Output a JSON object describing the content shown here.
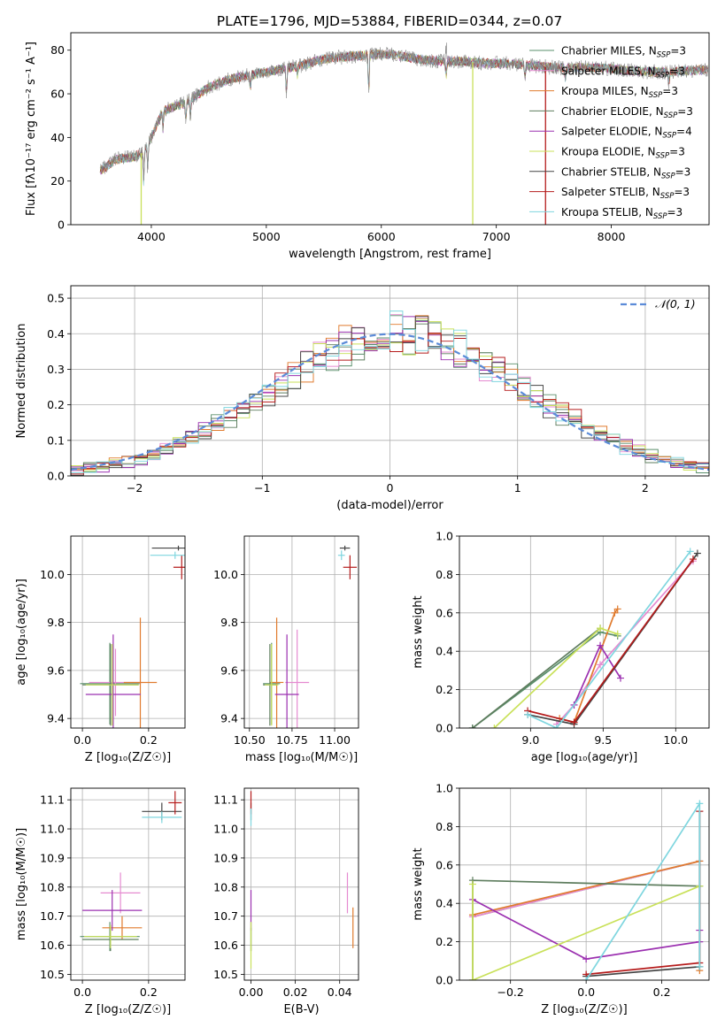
{
  "figure_title": "PLATE=1796, MJD=53884, FIBERID=0344, z=0.07",
  "colors": {
    "Chabrier MILES": "#5a8f6b",
    "Salpeter MILES": "#e58ad0",
    "Kroupa MILES": "#e07b2e",
    "Chabrier ELODIE": "#5e7d5e",
    "Salpeter ELODIE": "#9b30b0",
    "Kroupa ELODIE": "#c9e15a",
    "Chabrier STELIB": "#444444",
    "Salpeter STELIB": "#b51b1b",
    "Kroupa STELIB": "#7fd6df",
    "normal_curve": "#5b8bd8",
    "grid": "#b0b0b0"
  },
  "chart_data": [
    {
      "id": "spectrum",
      "type": "line",
      "title": "PLATE=1796, MJD=53884, FIBERID=0344, z=0.07",
      "xlabel": "wavelength [Angstrom, rest frame]",
      "ylabel": "Flux [fλ10⁻¹⁷ erg cm⁻² s⁻¹ A⁻¹]",
      "xlim": [
        3300,
        8850
      ],
      "ylim": [
        0,
        88
      ],
      "xticks": [
        4000,
        5000,
        6000,
        7000,
        8000
      ],
      "yticks": [
        0,
        20,
        40,
        60,
        80
      ],
      "grid": false,
      "legend_position": "top-right",
      "legend": [
        {
          "name": "Chabrier MILES",
          "sub": "SSP",
          "n": 3
        },
        {
          "name": "Salpeter MILES",
          "sub": "SSP",
          "n": 3
        },
        {
          "name": "Kroupa MILES",
          "sub": "SSP",
          "n": 3
        },
        {
          "name": "Chabrier ELODIE",
          "sub": "SSP",
          "n": 3
        },
        {
          "name": "Salpeter ELODIE",
          "sub": "SSP",
          "n": 4
        },
        {
          "name": "Kroupa ELODIE",
          "sub": "SSP",
          "n": 3
        },
        {
          "name": "Chabrier STELIB",
          "sub": "SSP",
          "n": 3
        },
        {
          "name": "Salpeter STELIB",
          "sub": "SSP",
          "n": 3
        },
        {
          "name": "Kroupa STELIB",
          "sub": "SSP",
          "n": 3
        }
      ],
      "continuum_x": [
        3560,
        3700,
        3850,
        3920,
        4000,
        4100,
        4300,
        4500,
        4700,
        4900,
        5100,
        5300,
        5500,
        5700,
        5900,
        6100,
        6300,
        6500,
        6700,
        6900,
        7100,
        7300,
        7500,
        7700,
        7900,
        8100,
        8300,
        8500,
        8800
      ],
      "continuum_y": [
        25,
        30,
        31,
        33,
        40,
        52,
        56,
        63,
        67,
        69,
        71,
        73,
        76,
        77,
        78,
        78,
        76,
        75,
        75,
        74,
        74,
        73,
        72,
        72,
        72,
        71,
        70,
        70,
        71
      ],
      "absorption_lines": [
        {
          "x": 3934,
          "depth": 15
        },
        {
          "x": 3969,
          "depth": 12
        },
        {
          "x": 4102,
          "depth": 8
        },
        {
          "x": 4300,
          "depth": 9
        },
        {
          "x": 4340,
          "depth": 8
        },
        {
          "x": 4861,
          "depth": 6
        },
        {
          "x": 5175,
          "depth": 12
        },
        {
          "x": 5270,
          "depth": 4
        },
        {
          "x": 5890,
          "depth": 18
        },
        {
          "x": 6563,
          "depth": 7
        },
        {
          "x": 7250,
          "depth": 5
        },
        {
          "x": 7600,
          "depth": 6
        },
        {
          "x": 8500,
          "depth": 5
        }
      ],
      "model_drop_lines": [
        {
          "x": 3912,
          "series": "Kroupa ELODIE"
        },
        {
          "x": 6795,
          "series": "Kroupa ELODIE"
        },
        {
          "x": 7428,
          "series": "Salpeter STELIB"
        }
      ]
    },
    {
      "id": "residuals",
      "type": "histogram",
      "xlabel": "(data-model)/error",
      "ylabel": "Normed distribution",
      "xlim": [
        -2.5,
        2.5
      ],
      "ylim": [
        0,
        0.535
      ],
      "xticks": [
        -2,
        -1,
        0,
        1,
        2
      ],
      "yticks": [
        0.0,
        0.1,
        0.2,
        0.3,
        0.4,
        0.5
      ],
      "grid": true,
      "legend_position": "top-right",
      "legend": [
        {
          "name": "𝒩(0, 1)",
          "style": "dashed"
        }
      ],
      "bin_width": 0.1,
      "curve": {
        "type": "normal",
        "mu": 0,
        "sigma": 1
      }
    },
    {
      "id": "age_vs_Z",
      "type": "errorbar",
      "xlabel": "Z [log₁₀(Z/Z☉)]",
      "ylabel": "age  [log₁₀(age/yr)]",
      "xlim": [
        -0.035,
        0.31
      ],
      "ylim": [
        9.36,
        10.16
      ],
      "xticks": [
        0.0,
        0.2
      ],
      "yticks": [
        9.4,
        9.6,
        9.8,
        10.0
      ],
      "grid": true,
      "points": [
        {
          "s": "Chabrier MILES",
          "x": 0.083,
          "xerr": 0.09,
          "y": 9.545,
          "yerr": 0.17
        },
        {
          "s": "Salpeter MILES",
          "x": 0.1,
          "xerr": 0.08,
          "y": 9.55,
          "yerr": 0.14
        },
        {
          "s": "Kroupa MILES",
          "x": 0.175,
          "xerr": 0.05,
          "y": 9.55,
          "yerr": 0.27
        },
        {
          "s": "Chabrier ELODIE",
          "x": 0.085,
          "xerr": 0.085,
          "y": 9.54,
          "yerr": 0.17
        },
        {
          "s": "Salpeter ELODIE",
          "x": 0.093,
          "xerr": 0.083,
          "y": 9.5,
          "yerr": 0.25
        },
        {
          "s": "Kroupa ELODIE",
          "x": 0.09,
          "xerr": 0.08,
          "y": 9.54,
          "yerr": 0.17
        },
        {
          "s": "Chabrier STELIB",
          "x": 0.29,
          "xerr": 0.08,
          "y": 10.11,
          "yerr": 0.01
        },
        {
          "s": "Salpeter STELIB",
          "x": 0.3,
          "xerr": 0.025,
          "y": 10.03,
          "yerr": 0.05
        },
        {
          "s": "Kroupa STELIB",
          "x": 0.28,
          "xerr": 0.075,
          "y": 10.08,
          "yerr": 0.015
        }
      ]
    },
    {
      "id": "age_vs_mass",
      "type": "errorbar",
      "xlabel": "mass [log₁₀(M/M☉)]",
      "ylabel": "",
      "xlim": [
        10.47,
        11.14
      ],
      "ylim": [
        9.36,
        10.16
      ],
      "xticks": [
        10.5,
        10.75,
        11.0
      ],
      "xticklabels": [
        "10.50",
        "10.75",
        "11.00"
      ],
      "yticks": [
        9.4,
        9.6,
        9.8,
        10.0
      ],
      "grid": true,
      "points": [
        {
          "s": "Chabrier MILES",
          "x": 10.63,
          "xerr": 0.05,
          "y": 9.545,
          "yerr": 0.17
        },
        {
          "s": "Salpeter MILES",
          "x": 10.78,
          "xerr": 0.07,
          "y": 9.55,
          "yerr": 0.22
        },
        {
          "s": "Kroupa MILES",
          "x": 10.66,
          "xerr": 0.04,
          "y": 9.55,
          "yerr": 0.27
        },
        {
          "s": "Chabrier ELODIE",
          "x": 10.62,
          "xerr": 0.04,
          "y": 9.54,
          "yerr": 0.17
        },
        {
          "s": "Salpeter ELODIE",
          "x": 10.72,
          "xerr": 0.07,
          "y": 9.5,
          "yerr": 0.25
        },
        {
          "s": "Kroupa ELODIE",
          "x": 10.63,
          "xerr": 0.04,
          "y": 9.54,
          "yerr": 0.17
        },
        {
          "s": "Chabrier STELIB",
          "x": 11.06,
          "xerr": 0.03,
          "y": 10.11,
          "yerr": 0.01
        },
        {
          "s": "Salpeter STELIB",
          "x": 11.09,
          "xerr": 0.04,
          "y": 10.03,
          "yerr": 0.05
        },
        {
          "s": "Kroupa STELIB",
          "x": 11.04,
          "xerr": 0.02,
          "y": 10.08,
          "yerr": 0.02
        }
      ]
    },
    {
      "id": "mass_weight_vs_age",
      "type": "line",
      "xlabel": "age  [log₁₀(age/yr)]",
      "ylabel": "mass weight",
      "xlim": [
        8.51,
        10.23
      ],
      "ylim": [
        0,
        1.0
      ],
      "xticks": [
        9.0,
        9.5,
        10.0
      ],
      "yticks": [
        0.0,
        0.2,
        0.4,
        0.6,
        0.8,
        1.0
      ],
      "grid": true,
      "series": [
        {
          "name": "Chabrier MILES",
          "x": [
            8.6,
            9.48,
            9.6
          ],
          "y": [
            0.0,
            0.5,
            0.48
          ]
        },
        {
          "name": "Salpeter MILES",
          "x": [
            9.18,
            9.3,
            9.48,
            10.12
          ],
          "y": [
            0.02,
            0.12,
            0.33,
            0.87
          ]
        },
        {
          "name": "Kroupa MILES",
          "x": [
            9.2,
            9.3,
            9.58,
            9.6
          ],
          "y": [
            0.05,
            0.03,
            0.6,
            0.62
          ]
        },
        {
          "name": "Chabrier ELODIE",
          "x": [
            8.6,
            9.48
          ],
          "y": [
            0.0,
            0.52
          ]
        },
        {
          "name": "Salpeter ELODIE",
          "x": [
            9.3,
            9.48,
            9.62
          ],
          "y": [
            0.12,
            0.43,
            0.26
          ]
        },
        {
          "name": "Kroupa ELODIE",
          "x": [
            8.75,
            9.48,
            9.6
          ],
          "y": [
            0.0,
            0.52,
            0.49
          ]
        },
        {
          "name": "Chabrier STELIB",
          "x": [
            8.98,
            9.3,
            10.15
          ],
          "y": [
            0.07,
            0.02,
            0.91
          ]
        },
        {
          "name": "Salpeter STELIB",
          "x": [
            8.98,
            9.3,
            10.12
          ],
          "y": [
            0.09,
            0.03,
            0.88
          ]
        },
        {
          "name": "Kroupa STELIB",
          "x": [
            8.98,
            9.18,
            10.1
          ],
          "y": [
            0.07,
            0.0,
            0.92
          ]
        }
      ]
    },
    {
      "id": "mass_vs_Z",
      "type": "errorbar",
      "xlabel": "Z [log₁₀(Z/Z☉)]",
      "ylabel": "mass [log₁₀(M/M☉)]",
      "xlim": [
        -0.035,
        0.31
      ],
      "ylim": [
        10.48,
        11.14
      ],
      "xticks": [
        0.0,
        0.2
      ],
      "yticks": [
        10.5,
        10.6,
        10.7,
        10.8,
        10.9,
        11.0,
        11.1
      ],
      "grid": true,
      "points": [
        {
          "s": "Chabrier MILES",
          "x": 0.083,
          "xerr": 0.09,
          "y": 10.63,
          "yerr": 0.05
        },
        {
          "s": "Salpeter MILES",
          "x": 0.115,
          "xerr": 0.06,
          "y": 10.78,
          "yerr": 0.07
        },
        {
          "s": "Kroupa MILES",
          "x": 0.12,
          "xerr": 0.06,
          "y": 10.66,
          "yerr": 0.04
        },
        {
          "s": "Chabrier ELODIE",
          "x": 0.085,
          "xerr": 0.085,
          "y": 10.62,
          "yerr": 0.04
        },
        {
          "s": "Salpeter ELODIE",
          "x": 0.09,
          "xerr": 0.09,
          "y": 10.72,
          "yerr": 0.07
        },
        {
          "s": "Kroupa ELODIE",
          "x": 0.085,
          "xerr": 0.08,
          "y": 10.63,
          "yerr": 0.04
        },
        {
          "s": "Chabrier STELIB",
          "x": 0.24,
          "xerr": 0.06,
          "y": 11.06,
          "yerr": 0.03
        },
        {
          "s": "Salpeter STELIB",
          "x": 0.28,
          "xerr": 0.02,
          "y": 11.09,
          "yerr": 0.04
        },
        {
          "s": "Kroupa STELIB",
          "x": 0.24,
          "xerr": 0.06,
          "y": 11.04,
          "yerr": 0.02
        }
      ]
    },
    {
      "id": "mass_vs_ebv",
      "type": "errorbar",
      "xlabel": "E(B-V)",
      "ylabel": "",
      "xlim": [
        -0.003,
        0.0485
      ],
      "ylim": [
        10.48,
        11.14
      ],
      "xticks": [
        0.0,
        0.02,
        0.04
      ],
      "xticklabels": [
        "0.00",
        "0.02",
        "0.04"
      ],
      "yticks": [
        10.5,
        10.6,
        10.7,
        10.8,
        10.9,
        11.0,
        11.1
      ],
      "grid": true,
      "points": [
        {
          "s": "Chabrier MILES",
          "x": 0.0,
          "xerr": 0.0,
          "y": 10.63,
          "yerr": 0.05
        },
        {
          "s": "Salpeter MILES",
          "x": 0.0435,
          "xerr": 0.0,
          "y": 10.78,
          "yerr": 0.07
        },
        {
          "s": "Kroupa MILES",
          "x": 0.046,
          "xerr": 0.0,
          "y": 10.66,
          "yerr": 0.07
        },
        {
          "s": "Chabrier ELODIE",
          "x": 0.0,
          "xerr": 0.0,
          "y": 10.62,
          "yerr": 0.04
        },
        {
          "s": "Salpeter ELODIE",
          "x": 0.0,
          "xerr": 0.0,
          "y": 10.72,
          "yerr": 0.07
        },
        {
          "s": "Kroupa ELODIE",
          "x": 0.0,
          "xerr": 0.0,
          "y": 10.6,
          "yerr": 0.08
        },
        {
          "s": "Chabrier STELIB",
          "x": 0.0,
          "xerr": 0.0,
          "y": 11.06,
          "yerr": 0.03
        },
        {
          "s": "Salpeter STELIB",
          "x": 0.0,
          "xerr": 0.0,
          "y": 11.09,
          "yerr": 0.04
        },
        {
          "s": "Kroupa STELIB",
          "x": 0.0,
          "xerr": 0.0,
          "y": 11.04,
          "yerr": 0.03
        }
      ]
    },
    {
      "id": "mass_weight_vs_Z",
      "type": "line",
      "xlabel": "Z [log₁₀(Z/Z☉)]",
      "ylabel": "mass weight",
      "xlim": [
        -0.335,
        0.325
      ],
      "ylim": [
        0,
        1.0
      ],
      "xticks": [
        -0.2,
        0.0,
        0.2
      ],
      "yticks": [
        0.0,
        0.2,
        0.4,
        0.6,
        0.8,
        1.0
      ],
      "grid": true,
      "series": [
        {
          "name": "Chabrier MILES",
          "x": [
            -0.3,
            0.3
          ],
          "y": [
            0.33,
            0.62
          ]
        },
        {
          "name": "Salpeter MILES",
          "x": [
            -0.3,
            0.3,
            0.3
          ],
          "y": [
            0.33,
            0.62,
            0.26
          ]
        },
        {
          "name": "Kroupa MILES",
          "x": [
            -0.3,
            0.3,
            0.3
          ],
          "y": [
            0.34,
            0.62,
            0.05
          ]
        },
        {
          "name": "Chabrier ELODIE",
          "x": [
            -0.3,
            -0.3,
            0.3
          ],
          "y": [
            0.0,
            0.52,
            0.49
          ]
        },
        {
          "name": "Salpeter ELODIE",
          "x": [
            -0.3,
            0.0,
            0.3,
            0.3
          ],
          "y": [
            0.42,
            0.11,
            0.2,
            0.26
          ]
        },
        {
          "name": "Kroupa ELODIE",
          "x": [
            -0.3,
            -0.3,
            0.3
          ],
          "y": [
            0.5,
            0.0,
            0.49
          ]
        },
        {
          "name": "Chabrier STELIB",
          "x": [
            0.0,
            0.3,
            0.3
          ],
          "y": [
            0.02,
            0.07,
            0.88
          ]
        },
        {
          "name": "Salpeter STELIB",
          "x": [
            0.0,
            0.3,
            0.3
          ],
          "y": [
            0.03,
            0.09,
            0.88
          ]
        },
        {
          "name": "Kroupa STELIB",
          "x": [
            0.0,
            0.3,
            0.3
          ],
          "y": [
            0.0,
            0.92,
            0.07
          ]
        }
      ]
    }
  ]
}
